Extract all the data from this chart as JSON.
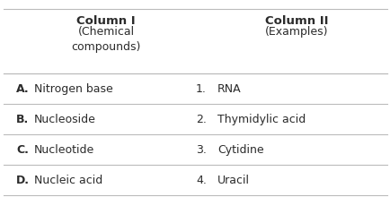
{
  "title_col1": "Column I",
  "subtitle_col1": "(Chemical\ncompounds)",
  "title_col2": "Column II",
  "subtitle_col2": "(Examples)",
  "rows": [
    {
      "letter": "A.",
      "col1": "Nitrogen base",
      "number": "1.",
      "col2": "RNA"
    },
    {
      "letter": "B.",
      "col1": "Nucleoside",
      "number": "2.",
      "col2": "Thymidylic acid"
    },
    {
      "letter": "C.",
      "col1": "Nucleotide",
      "number": "3.",
      "col2": "Cytidine"
    },
    {
      "letter": "D.",
      "col1": "Nucleic acid",
      "number": "4.",
      "col2": "Uracil"
    }
  ],
  "bg_color": "#ffffff",
  "text_color": "#2b2b2b",
  "line_color": "#bbbbbb",
  "header_fontsize": 9.5,
  "body_fontsize": 9.0,
  "fig_width": 4.35,
  "fig_height": 2.2
}
